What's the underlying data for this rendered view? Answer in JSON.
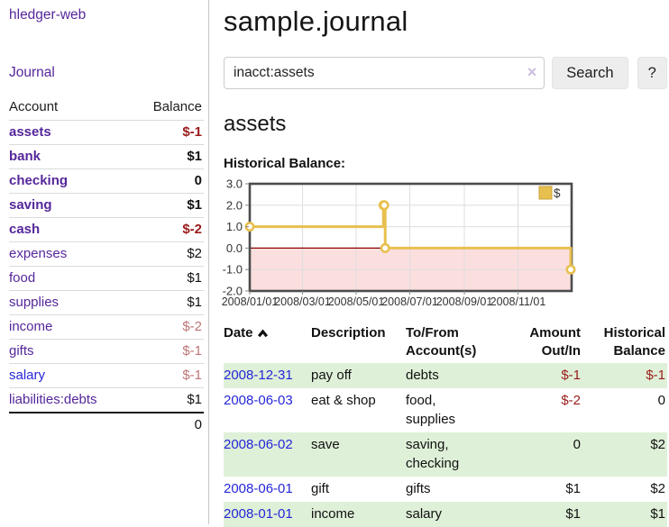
{
  "app": {
    "brand": "hledger-web",
    "nav": {
      "journal": "Journal"
    }
  },
  "colors": {
    "link_purple": "#55279B",
    "link_blue": "#2626D8",
    "negative_strong": "#9A1B1B",
    "negative_soft": "#BE7676",
    "row_green": "#DFF0D8",
    "chart_line": "#E8C04F",
    "chart_negative_fill": "#FBDEDE",
    "chart_zero_line": "#8B0000"
  },
  "sidebar": {
    "headers": {
      "account": "Account",
      "balance": "Balance"
    },
    "accounts": [
      {
        "name": "assets",
        "balance": "$-1",
        "level": 1,
        "bold": true,
        "balance_style": "negative-strong",
        "link_color": "purple"
      },
      {
        "name": "bank",
        "balance": "$1",
        "level": 2,
        "bold": true,
        "balance_style": "normal",
        "link_color": "purple"
      },
      {
        "name": "checking",
        "balance": "0",
        "level": 3,
        "bold": true,
        "balance_style": "normal",
        "link_color": "purple"
      },
      {
        "name": "saving",
        "balance": "$1",
        "level": 3,
        "bold": true,
        "balance_style": "normal",
        "link_color": "purple"
      },
      {
        "name": "cash",
        "balance": "$-2",
        "level": 2,
        "bold": true,
        "balance_style": "negative-strong",
        "link_color": "purple"
      },
      {
        "name": "expenses",
        "balance": "$2",
        "level": 1,
        "bold": false,
        "balance_style": "normal",
        "link_color": "purple"
      },
      {
        "name": "food",
        "balance": "$1",
        "level": 2,
        "bold": false,
        "balance_style": "normal",
        "link_color": "purple"
      },
      {
        "name": "supplies",
        "balance": "$1",
        "level": 2,
        "bold": false,
        "balance_style": "normal",
        "link_color": "purple"
      },
      {
        "name": "income",
        "balance": "$-2",
        "level": 1,
        "bold": false,
        "balance_style": "negative-soft",
        "link_color": "purple"
      },
      {
        "name": "gifts",
        "balance": "$-1",
        "level": 2,
        "bold": false,
        "balance_style": "negative-soft",
        "link_color": "purple"
      },
      {
        "name": "salary",
        "balance": "$-1",
        "level": 2,
        "bold": false,
        "balance_style": "negative-soft",
        "link_color": "blue"
      },
      {
        "name": "liabilities:debts",
        "balance": "$1",
        "level": 1,
        "bold": false,
        "balance_style": "normal",
        "link_color": "purple"
      }
    ],
    "total": "0"
  },
  "main": {
    "title": "sample.journal",
    "search": {
      "value": "inacct:assets",
      "clear_icon": "×",
      "button_label": "Search",
      "help_label": "?"
    },
    "account_heading": "assets",
    "chart_label": "Historical Balance:"
  },
  "chart_data": {
    "type": "line",
    "step": true,
    "title": "Historical Balance:",
    "series": [
      {
        "name": "$",
        "color": "#E8C04F",
        "points": [
          [
            "2008-01-01",
            1
          ],
          [
            "2008-06-01",
            2
          ],
          [
            "2008-06-02",
            2
          ],
          [
            "2008-06-03",
            0
          ],
          [
            "2008-12-31",
            -1
          ]
        ]
      }
    ],
    "x_range": [
      "2008-01-01",
      "2009-01-01"
    ],
    "x_ticks": [
      "2008/01/01",
      "2008/03/01",
      "2008/05/01",
      "2008/07/01",
      "2008/09/01",
      "2008/11/01"
    ],
    "y_ticks": [
      3.0,
      2.0,
      1.0,
      0.0,
      -1.0,
      -2.0
    ],
    "ylim": [
      -2,
      3
    ],
    "grid": true,
    "negative_fill": "#FBDEDE",
    "zero_line_color": "#8B0000",
    "legend": {
      "label": "$",
      "position": "top-right"
    }
  },
  "register": {
    "headers": {
      "date": "Date",
      "description": "Description",
      "accounts_line1": "To/From",
      "accounts_line2": "Account(s)",
      "amount_line1": "Amount",
      "amount_line2": "Out/In",
      "balance_line1": "Historical",
      "balance_line2": "Balance"
    },
    "rows": [
      {
        "date": "2008-12-31",
        "description": "pay off",
        "accounts": "debts",
        "amount": "$-1",
        "balance": "$-1",
        "amount_negative": true,
        "balance_negative": true
      },
      {
        "date": "2008-06-03",
        "description": "eat & shop",
        "accounts": "food, supplies",
        "amount": "$-2",
        "balance": "0",
        "amount_negative": true,
        "balance_negative": false
      },
      {
        "date": "2008-06-02",
        "description": "save",
        "accounts": "saving, checking",
        "amount": "0",
        "balance": "$2",
        "amount_negative": false,
        "balance_negative": false
      },
      {
        "date": "2008-06-01",
        "description": "gift",
        "accounts": "gifts",
        "amount": "$1",
        "balance": "$2",
        "amount_negative": false,
        "balance_negative": false
      },
      {
        "date": "2008-01-01",
        "description": "income",
        "accounts": "salary",
        "amount": "$1",
        "balance": "$1",
        "amount_negative": false,
        "balance_negative": false
      }
    ]
  }
}
